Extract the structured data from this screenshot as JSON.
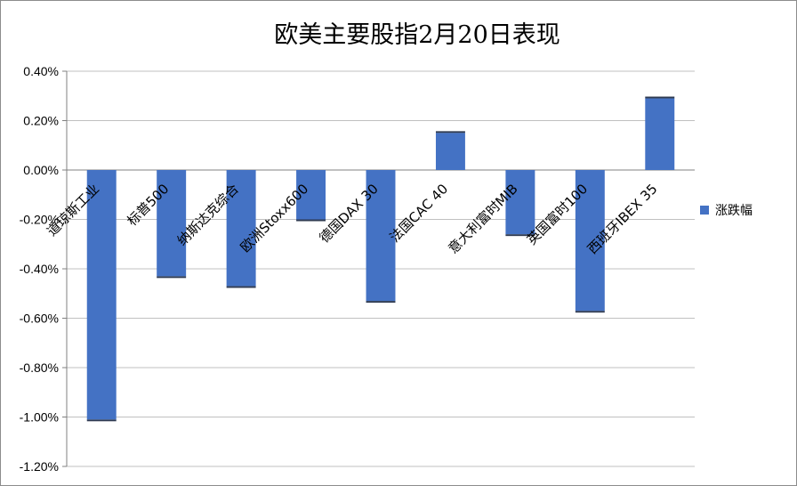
{
  "chart_data": {
    "type": "bar",
    "title": "欧美主要股指2月20日表现",
    "xlabel": "",
    "ylabel": "",
    "categories": [
      "道琼斯工业",
      "标普500",
      "纳斯达克综合",
      "欧洲Stoxx600",
      "德国DAX 30",
      "法国CAC 40",
      "意大利富时MIB",
      "英国富时100",
      "西班牙IBEX 35"
    ],
    "series": [
      {
        "name": "涨跌幅",
        "values": [
          -1.01,
          -0.43,
          -0.47,
          -0.2,
          -0.53,
          0.15,
          -0.26,
          -0.57,
          0.29
        ]
      }
    ],
    "ylim": [
      -1.2,
      0.4
    ],
    "y_ticks": [
      "0.40%",
      "0.20%",
      "0.00%",
      "-0.20%",
      "-0.40%",
      "-0.60%",
      "-0.80%",
      "-1.00%",
      "-1.20%"
    ],
    "y_unit": "%",
    "grid": true,
    "legend_position": "right",
    "bar_color": "#4472C4",
    "grid_color": "#c0c0c0"
  }
}
